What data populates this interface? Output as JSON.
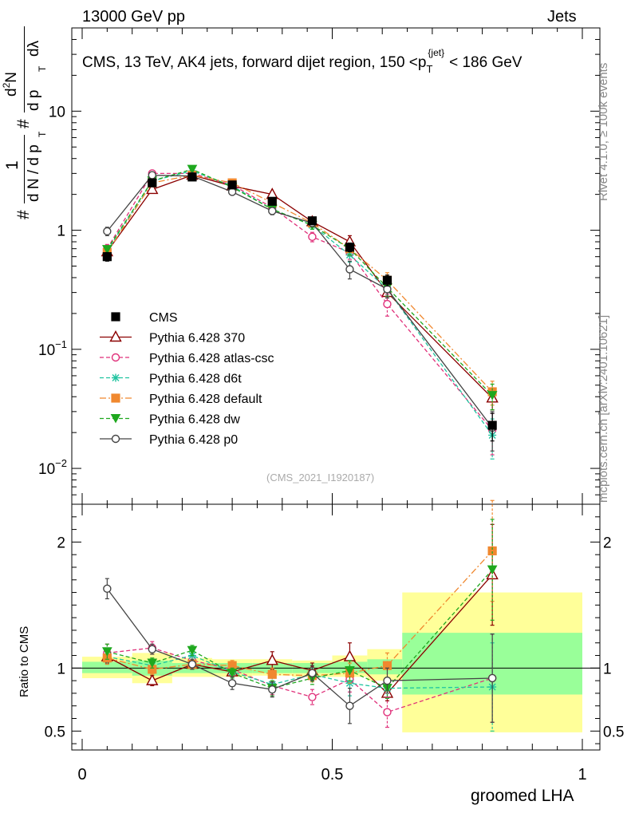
{
  "header": {
    "left": "13000 GeV pp",
    "right": "Jets"
  },
  "title_main": "CMS, 13 TeV, AK4 jets, forward dijet region, 150 <p",
  "title_sup": "{jet}",
  "title_sub": "T",
  "title_tail": "< 186 GeV",
  "ylabel_parts": {
    "hash": "#",
    "one": "1",
    "dN": "d N / d p",
    "T": "T",
    "hash2": "#",
    "d2N": "d",
    "sq": "2",
    "N2": "N",
    "dpT": "d p",
    "T2": "T",
    "dl": "dλ"
  },
  "side_label_1": "Rivet 4.1.0, ≥ 100k events",
  "side_label_2": "mcplots.cern.ch [arXiv:2401.10621]",
  "watermark": "(CMS_2021_I1920187)",
  "ratio_ylabel": "Ratio to CMS",
  "xlabel": "groomed LHA",
  "colors": {
    "cms": "#000000",
    "p370": "#8b0000",
    "atlas": "#e0307a",
    "d6t": "#20c4a0",
    "default": "#f0882f",
    "dw": "#1ea81e",
    "p0": "#444444",
    "band_yellow": "#ffff99",
    "band_green": "#99ff99"
  },
  "chart_data": [
    {
      "type": "line",
      "panel": "main",
      "title": "CMS, 13 TeV, AK4 jets, forward dijet region, 150 <p_T^{jet}< 186 GeV",
      "xlabel": "groomed LHA",
      "ylabel": "1/dN/dp_T d^2N/dp_T dλ",
      "yscale": "log",
      "xlim": [
        0,
        1
      ],
      "ylim": [
        0.005,
        50
      ],
      "y_ticks": [
        {
          "value": 0.01,
          "label_base": "10",
          "label_exp": "−2"
        },
        {
          "value": 0.1,
          "label_base": "10",
          "label_exp": "−1"
        },
        {
          "value": 1,
          "label_base": "1",
          "label_exp": ""
        },
        {
          "value": 10,
          "label_base": "10",
          "label_exp": ""
        }
      ],
      "x": [
        0.05,
        0.14,
        0.22,
        0.3,
        0.38,
        0.46,
        0.535,
        0.61,
        0.82
      ],
      "bins": [
        [
          0.0,
          0.1
        ],
        [
          0.1,
          0.18
        ],
        [
          0.18,
          0.26
        ],
        [
          0.26,
          0.34
        ],
        [
          0.34,
          0.42
        ],
        [
          0.42,
          0.5
        ],
        [
          0.5,
          0.57
        ],
        [
          0.57,
          0.64
        ],
        [
          0.64,
          1.0
        ]
      ],
      "series": [
        {
          "name": "CMS",
          "key": "cms",
          "values": [
            0.6,
            2.5,
            2.8,
            2.4,
            1.75,
            1.2,
            0.72,
            0.38,
            0.023
          ],
          "err": [
            0.05,
            0.15,
            0.15,
            0.12,
            0.1,
            0.08,
            0.06,
            0.04,
            0.006
          ]
        },
        {
          "name": "Pythia 6.428 370",
          "key": "p370",
          "values": [
            0.66,
            2.2,
            2.9,
            2.35,
            2.0,
            1.18,
            0.8,
            0.3,
            0.039
          ],
          "err": [
            0.05,
            0.1,
            0.1,
            0.1,
            0.1,
            0.08,
            0.1,
            0.05,
            0.008
          ]
        },
        {
          "name": "Pythia 6.428 atlas-csc",
          "key": "atlas",
          "values": [
            0.7,
            3.0,
            3.0,
            2.4,
            1.55,
            0.88,
            0.65,
            0.24,
            0.021
          ],
          "err": [
            0.06,
            0.12,
            0.12,
            0.1,
            0.1,
            0.08,
            0.08,
            0.05,
            0.008
          ]
        },
        {
          "name": "Pythia 6.428 d6t",
          "key": "d6t",
          "values": [
            0.67,
            2.6,
            3.15,
            2.35,
            1.5,
            1.1,
            0.62,
            0.32,
            0.019
          ],
          "err": [
            0.05,
            0.1,
            0.1,
            0.1,
            0.1,
            0.08,
            0.08,
            0.05,
            0.007
          ]
        },
        {
          "name": "Pythia 6.428 default",
          "key": "default",
          "values": [
            0.65,
            2.5,
            2.9,
            2.5,
            1.7,
            1.15,
            0.7,
            0.38,
            0.044
          ],
          "err": [
            0.05,
            0.1,
            0.1,
            0.1,
            0.1,
            0.08,
            0.08,
            0.06,
            0.01
          ]
        },
        {
          "name": "Pythia 6.428 dw",
          "key": "dw",
          "values": [
            0.69,
            2.6,
            3.25,
            2.3,
            1.5,
            1.1,
            0.7,
            0.33,
            0.041
          ],
          "err": [
            0.05,
            0.1,
            0.1,
            0.1,
            0.1,
            0.08,
            0.08,
            0.05,
            0.01
          ]
        },
        {
          "name": "Pythia 6.428 p0",
          "key": "p0",
          "values": [
            0.98,
            2.9,
            2.85,
            2.1,
            1.45,
            1.15,
            0.47,
            0.32,
            0.022
          ],
          "err": [
            0.08,
            0.12,
            0.1,
            0.1,
            0.1,
            0.08,
            0.08,
            0.05,
            0.008
          ]
        }
      ]
    },
    {
      "type": "line",
      "panel": "ratio",
      "ylabel": "Ratio to CMS",
      "xlabel": "groomed LHA",
      "xlim": [
        0,
        1
      ],
      "ylim": [
        0.35,
        2.3
      ],
      "y_ticks": [
        {
          "value": 0.5,
          "label": "0.5"
        },
        {
          "value": 1,
          "label": "1"
        },
        {
          "value": 2,
          "label": "2"
        }
      ],
      "x_ticks": [
        {
          "value": 0,
          "label": "0"
        },
        {
          "value": 0.5,
          "label": "0.5"
        },
        {
          "value": 1,
          "label": "1"
        }
      ],
      "bands": {
        "bins": [
          [
            0.0,
            0.1
          ],
          [
            0.1,
            0.18
          ],
          [
            0.18,
            0.26
          ],
          [
            0.26,
            0.34
          ],
          [
            0.34,
            0.42
          ],
          [
            0.42,
            0.5
          ],
          [
            0.5,
            0.57
          ],
          [
            0.57,
            0.64
          ],
          [
            0.64,
            1.0
          ]
        ],
        "yellow": [
          [
            0.92,
            1.09
          ],
          [
            0.88,
            1.12
          ],
          [
            0.93,
            1.08
          ],
          [
            0.93,
            1.07
          ],
          [
            0.94,
            1.07
          ],
          [
            0.93,
            1.06
          ],
          [
            0.93,
            1.1
          ],
          [
            0.9,
            1.15
          ],
          [
            0.49,
            1.6
          ]
        ],
        "green": [
          [
            0.96,
            1.05
          ],
          [
            0.94,
            1.06
          ],
          [
            0.96,
            1.04
          ],
          [
            0.96,
            1.04
          ],
          [
            0.96,
            1.04
          ],
          [
            0.96,
            1.04
          ],
          [
            0.96,
            1.05
          ],
          [
            0.95,
            1.07
          ],
          [
            0.79,
            1.28
          ]
        ]
      },
      "x": [
        0.05,
        0.14,
        0.22,
        0.3,
        0.38,
        0.46,
        0.535,
        0.61,
        0.82
      ],
      "series": [
        {
          "name": "Pythia 6.428 370",
          "key": "p370",
          "values": [
            1.09,
            0.9,
            1.03,
            0.97,
            1.06,
            0.98,
            1.09,
            0.8,
            1.74
          ],
          "err": [
            0.05,
            0.04,
            0.04,
            0.04,
            0.07,
            0.06,
            0.11,
            0.06,
            0.4
          ]
        },
        {
          "name": "Pythia 6.428 atlas-csc",
          "key": "atlas",
          "values": [
            1.12,
            1.16,
            1.06,
            0.99,
            0.86,
            0.77,
            0.91,
            0.65,
            0.92
          ],
          "err": [
            0.07,
            0.05,
            0.05,
            0.05,
            0.07,
            0.06,
            0.1,
            0.12,
            0.35
          ]
        },
        {
          "name": "Pythia 6.428 d6t",
          "key": "d6t",
          "values": [
            1.09,
            1.02,
            1.1,
            0.97,
            0.87,
            0.95,
            0.88,
            0.84,
            0.85
          ],
          "err": [
            0.06,
            0.04,
            0.04,
            0.04,
            0.06,
            0.05,
            0.1,
            0.08,
            0.35
          ]
        },
        {
          "name": "Pythia 6.428 default",
          "key": "default",
          "values": [
            1.08,
            0.99,
            1.03,
            1.02,
            0.95,
            0.94,
            0.96,
            1.02,
            1.93
          ],
          "err": [
            0.05,
            0.04,
            0.04,
            0.04,
            0.05,
            0.05,
            0.08,
            0.1,
            0.4
          ]
        },
        {
          "name": "Pythia 6.428 dw",
          "key": "dw",
          "values": [
            1.13,
            1.04,
            1.14,
            0.96,
            0.84,
            0.92,
            0.98,
            0.84,
            1.78
          ],
          "err": [
            0.06,
            0.04,
            0.04,
            0.04,
            0.06,
            0.05,
            0.08,
            0.08,
            0.4
          ]
        },
        {
          "name": "Pythia 6.428 p0",
          "key": "p0",
          "values": [
            1.63,
            1.15,
            1.03,
            0.88,
            0.83,
            0.96,
            0.7,
            0.9,
            0.92
          ],
          "err": [
            0.08,
            0.04,
            0.04,
            0.05,
            0.06,
            0.06,
            0.14,
            0.1,
            0.35
          ]
        }
      ]
    }
  ]
}
